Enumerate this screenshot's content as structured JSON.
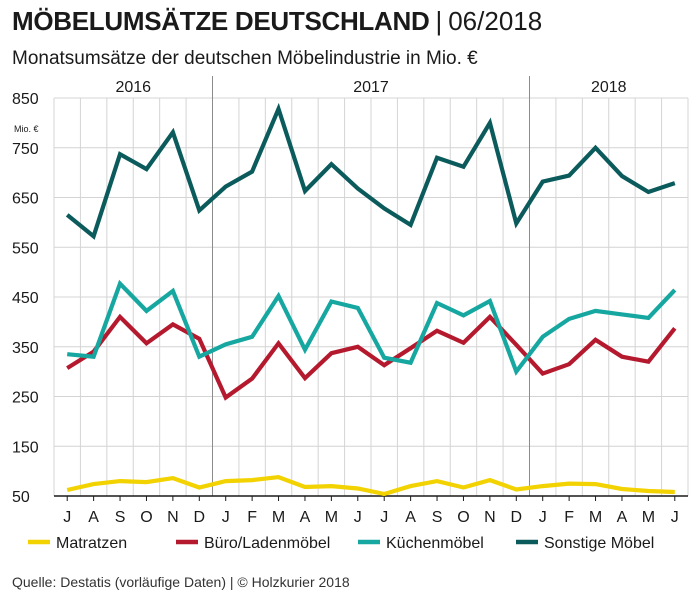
{
  "header": {
    "title": "MÖBELUMSÄTZE DEUTSCHLAND",
    "separator": "|",
    "date": "06/2018",
    "subtitle": "Monatsumsätze der deutschen Möbelindustrie in Mio. €"
  },
  "footer": {
    "source": "Quelle: Destatis (vorläufige Daten) | © Holzkurier 2018"
  },
  "chart_data": {
    "type": "line",
    "title": "MÖBELUMSÄTZE DEUTSCHLAND | 06/2018",
    "subtitle": "Monatsumsätze der deutschen Möbelindustrie in Mio. €",
    "ylabel": "Mio. €",
    "xlabel": "",
    "ylim": [
      50,
      850
    ],
    "yticks": [
      50,
      150,
      250,
      350,
      450,
      550,
      650,
      750,
      850
    ],
    "grid": true,
    "legend_position": "bottom",
    "years": [
      {
        "label": "2016",
        "start": 0,
        "end": 6
      },
      {
        "label": "2017",
        "start": 6,
        "end": 18
      },
      {
        "label": "2018",
        "start": 18,
        "end": 24
      }
    ],
    "categories": [
      "J",
      "A",
      "S",
      "O",
      "N",
      "D",
      "J",
      "F",
      "M",
      "A",
      "M",
      "J",
      "J",
      "A",
      "S",
      "O",
      "N",
      "D",
      "J",
      "F",
      "M",
      "A",
      "M",
      "J"
    ],
    "series": [
      {
        "name": "Matratzen",
        "color": "#f2d200",
        "values": [
          62,
          74,
          80,
          78,
          86,
          67,
          80,
          82,
          88,
          68,
          70,
          65,
          54,
          70,
          80,
          67,
          82,
          63,
          70,
          75,
          74,
          64,
          60,
          58
        ]
      },
      {
        "name": "Büro/Ladenmöbel",
        "color": "#b5192e",
        "values": [
          307,
          340,
          410,
          357,
          395,
          366,
          248,
          286,
          357,
          287,
          337,
          350,
          313,
          347,
          382,
          358,
          410,
          354,
          296,
          315,
          364,
          330,
          320,
          387
        ]
      },
      {
        "name": "Küchenmöbel",
        "color": "#16a7a1",
        "values": [
          335,
          330,
          477,
          422,
          462,
          330,
          355,
          370,
          452,
          344,
          441,
          428,
          328,
          318,
          438,
          413,
          442,
          300,
          370,
          406,
          422,
          415,
          408,
          464
        ]
      },
      {
        "name": "Sonstige Möbel",
        "color": "#0b5b5c",
        "values": [
          615,
          572,
          737,
          707,
          781,
          624,
          672,
          702,
          828,
          663,
          717,
          668,
          628,
          595,
          730,
          712,
          800,
          598,
          682,
          694,
          750,
          693,
          661,
          679
        ]
      }
    ]
  }
}
